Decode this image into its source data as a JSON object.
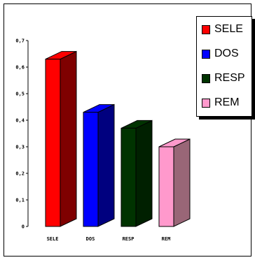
{
  "chart_data": {
    "type": "bar",
    "categories": [
      "SELE",
      "DOS",
      "RESP",
      "REM"
    ],
    "values": [
      0.63,
      0.43,
      0.37,
      0.3
    ],
    "ylim": [
      0,
      0.7
    ],
    "yticks": [
      0,
      0.1,
      0.2,
      0.3,
      0.4,
      0.5,
      0.6,
      0.7
    ],
    "ytick_labels": [
      "0",
      "0,1",
      "0,2",
      "0,3",
      "0,4",
      "0,5",
      "0,6",
      "0,7"
    ],
    "three_d": true,
    "grid": false,
    "legend_position": "top-right",
    "series_colors": {
      "SELE": {
        "front": "#ff0000",
        "side": "#7f0000",
        "top": "#ff0000"
      },
      "DOS": {
        "front": "#0000ff",
        "side": "#00007f",
        "top": "#0000ff"
      },
      "RESP": {
        "front": "#003300",
        "side": "#002000",
        "top": "#003300"
      },
      "REM": {
        "front": "#ff99cc",
        "side": "#996677",
        "top": "#ff99cc"
      }
    }
  },
  "legend": {
    "items": [
      {
        "label": "SELE",
        "color": "#ff0000"
      },
      {
        "label": "DOS",
        "color": "#0000ff"
      },
      {
        "label": "RESP",
        "color": "#003300"
      },
      {
        "label": "REM",
        "color": "#ff99cc"
      }
    ]
  }
}
